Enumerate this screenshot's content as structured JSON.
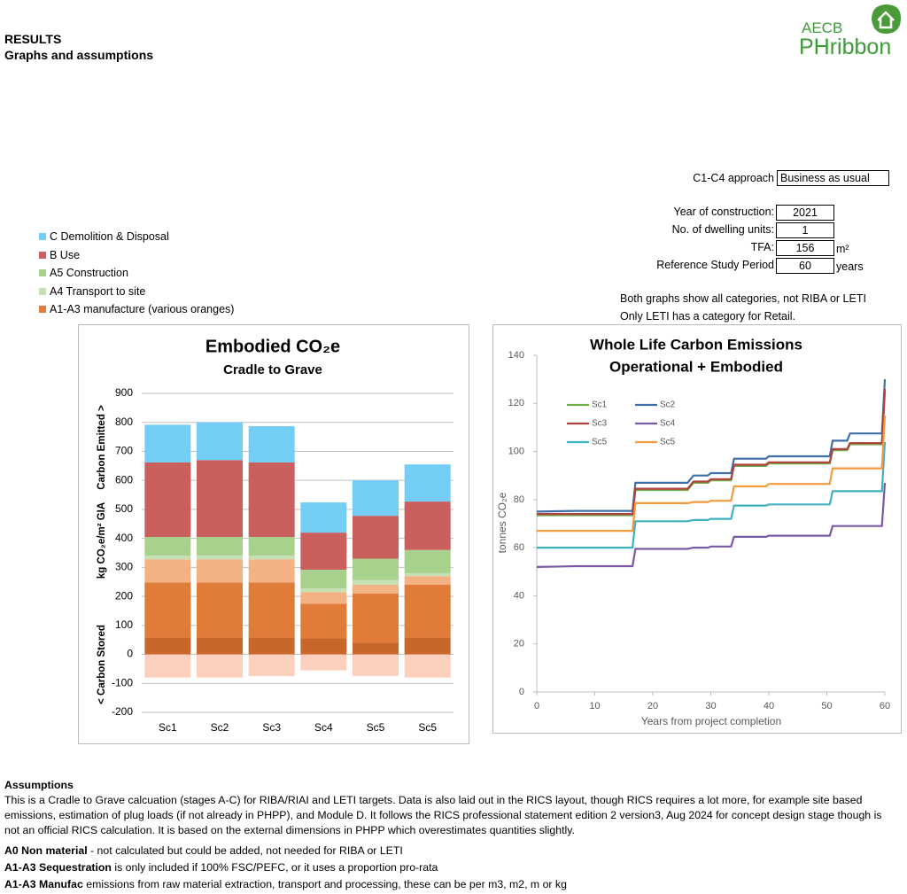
{
  "header": {
    "title": "RESULTS",
    "subtitle": "Graphs and assumptions"
  },
  "logo": {
    "org": "AECB",
    "product": "PHribbon"
  },
  "inputs": {
    "approach": {
      "label": "C1-C4 approach",
      "value": "Business as usual"
    },
    "rows": [
      {
        "label": "Year of construction:",
        "value": "2021"
      },
      {
        "label": "No. of dwelling units:",
        "value": "1"
      },
      {
        "label": "TFA:",
        "value": "156",
        "unit": "m²"
      },
      {
        "label": "Reference Study Period",
        "value": "60",
        "unit": "years"
      }
    ]
  },
  "notes": [
    "Both graphs show all categories, not RIBA or LETI",
    "Only LETI has a category for Retail."
  ],
  "chart_data": [
    {
      "type": "bar",
      "stacked": true,
      "title": "Embodied CO₂e",
      "subtitle": "Cradle to Grave",
      "ylabel": "kg CO₂e/m² GIA",
      "annotations": [
        "Carbon Emitted >",
        "< Carbon Stored"
      ],
      "categories": [
        "Sc1",
        "Sc2",
        "Sc3",
        "Sc4",
        "Sc5",
        "Sc5"
      ],
      "series": [
        {
          "color": "#fcd0bd",
          "values": [
            -80,
            -80,
            -75,
            -55,
            -75,
            -80
          ]
        },
        {
          "color": "#c8672b",
          "values": [
            58,
            58,
            58,
            55,
            40,
            58
          ]
        },
        {
          "name": "A1-A3 manufacture (various oranges)",
          "color": "#e07b39",
          "values": [
            190,
            190,
            190,
            120,
            170,
            182
          ]
        },
        {
          "color": "#f4b183",
          "values": [
            80,
            80,
            80,
            40,
            30,
            30
          ]
        },
        {
          "name": "A4 Transport to site",
          "color": "#c5e0b4",
          "values": [
            12,
            12,
            12,
            12,
            16,
            10
          ]
        },
        {
          "name": "A5 Construction",
          "color": "#a9d18e",
          "values": [
            65,
            65,
            65,
            65,
            74,
            80
          ]
        },
        {
          "name": "B Use",
          "color": "#c9605e",
          "values": [
            257,
            265,
            257,
            128,
            148,
            167
          ]
        },
        {
          "name": "C Demolition & Disposal",
          "color": "#73cdf5",
          "values": [
            130,
            130,
            125,
            104,
            122,
            128
          ]
        }
      ],
      "ylim": [
        -200,
        900
      ],
      "yticks": [
        -200,
        -100,
        0,
        100,
        200,
        300,
        400,
        500,
        600,
        700,
        800,
        900
      ],
      "grid": true
    },
    {
      "type": "line",
      "title": "Whole Life Carbon Emissions",
      "subtitle": "Operational + Embodied",
      "xlabel": "Years from project completion",
      "ylabel": "tonnes CO₂e",
      "x": [
        0,
        7,
        16.5,
        17,
        26,
        27,
        29.5,
        30,
        33.5,
        34,
        39.5,
        40,
        50.5,
        51,
        53.5,
        54,
        59.5,
        60
      ],
      "series": [
        {
          "name": "Sc1",
          "color": "#70ad47",
          "values": [
            73.5,
            73.5,
            73.5,
            84,
            84,
            87,
            87,
            88,
            88,
            94,
            94,
            95,
            95,
            100.5,
            100.5,
            103,
            103,
            125
          ]
        },
        {
          "name": "Sc2",
          "color": "#3e6ea8",
          "values": [
            75,
            75.3,
            75.3,
            87,
            87,
            90,
            90,
            91,
            91,
            97,
            97,
            98,
            98,
            104.5,
            104.5,
            107.5,
            107.5,
            130
          ]
        },
        {
          "name": "Sc3",
          "color": "#b0413e",
          "values": [
            74,
            74,
            74,
            84.5,
            84.5,
            87.5,
            87.5,
            88.5,
            88.5,
            94.5,
            94.5,
            95.5,
            95.5,
            101,
            101,
            103.5,
            103.5,
            126
          ]
        },
        {
          "name": "Sc4",
          "color": "#7a58a6",
          "values": [
            52,
            52.3,
            52.3,
            59.5,
            59.5,
            60,
            60,
            60.5,
            60.5,
            64.5,
            64.5,
            65,
            65,
            69,
            69,
            69,
            69,
            87
          ]
        },
        {
          "name": "Sc5",
          "color": "#3fb0c0",
          "values": [
            60,
            60,
            60,
            71,
            71,
            71.5,
            71.5,
            72,
            72,
            77.5,
            77.5,
            78,
            78,
            83.5,
            83.5,
            83.5,
            83.5,
            104
          ]
        },
        {
          "name": "Sc5",
          "color": "#f39a3c",
          "values": [
            67,
            67,
            67,
            78.5,
            78.5,
            79,
            79,
            79.5,
            79.5,
            85.5,
            85.5,
            86.5,
            86.5,
            93,
            93,
            93,
            93,
            115
          ]
        }
      ],
      "xlim": [
        0,
        60
      ],
      "xticks": [
        0,
        10,
        20,
        30,
        40,
        50,
        60
      ],
      "ylim": [
        0,
        140
      ],
      "yticks": [
        0,
        20,
        40,
        60,
        80,
        100,
        120,
        140
      ],
      "grid": false
    }
  ],
  "assumptions": {
    "heading": "Assumptions",
    "paragraph": "This is a Cradle to Grave calcuation (stages A-C) for RIBA/RIAI and LETI targets. Data is also laid out in the RICS layout, though RICS requires a lot more, for example site based emissions, estimation of plug loads (if not already in PHPP), and Module D. It follows the RICS professional statement edition 2 version3, Aug 2024 for concept design stage though is not an official RICS calculation. It is based on the external dimensions in PHPP which overestimates quantities slightly.",
    "items": [
      {
        "term": "A0 Non material",
        "text": " - not calculated but could be added, not needed for RIBA or LETI"
      },
      {
        "term": "A1-A3 Sequestration",
        "text": " is only included if 100% FSC/PEFC, or it uses a proportion pro-rata"
      },
      {
        "term": "A1-A3 Manufac",
        "text": " emissions from raw material extraction, transport and processing, these can be per m3, m2, m or kg"
      }
    ]
  }
}
